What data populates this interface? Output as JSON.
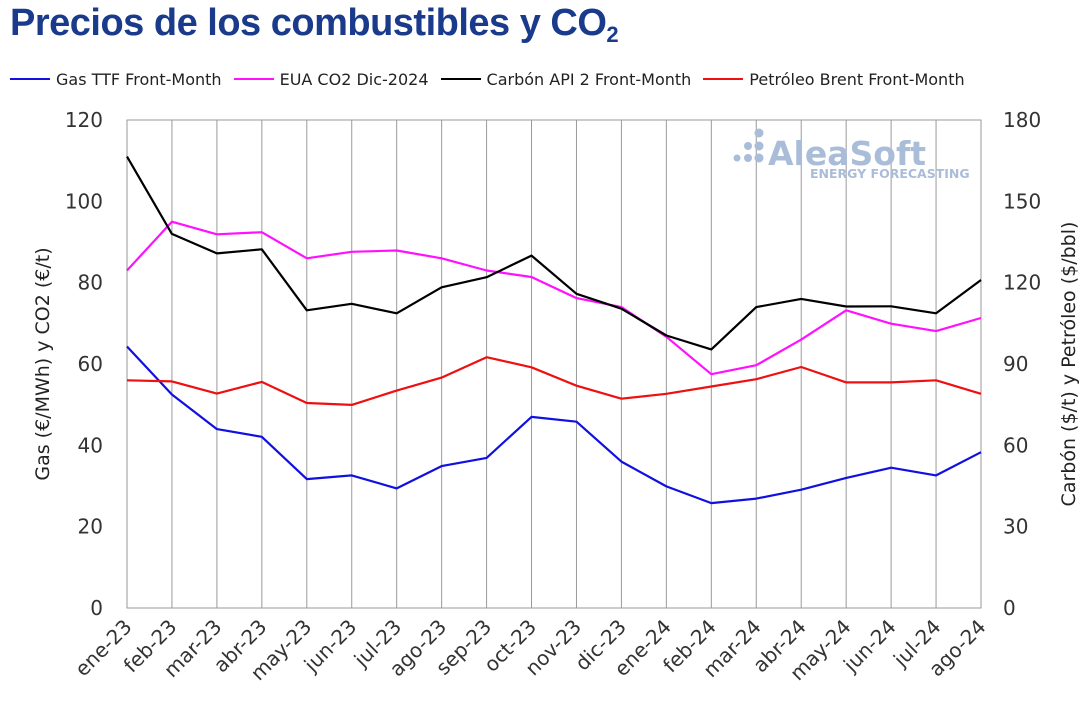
{
  "title": "Precios de los combustibles y CO",
  "title_subscript": "2",
  "watermark": {
    "brand": "AleaSoft",
    "tagline": "ENERGY FORECASTING"
  },
  "chart_data": {
    "type": "line",
    "x": [
      "ene-23",
      "feb-23",
      "mar-23",
      "abr-23",
      "may-23",
      "jun-23",
      "jul-23",
      "ago-23",
      "sep-23",
      "oct-23",
      "nov-23",
      "dic-23",
      "ene-24",
      "feb-24",
      "mar-24",
      "abr-24",
      "may-24",
      "jun-24",
      "jul-24",
      "ago-24"
    ],
    "left_axis": {
      "label": "Gas (€/MWh) y CO2 (€/t)",
      "ylim": [
        0,
        120
      ],
      "ticks": [
        0,
        20,
        40,
        60,
        80,
        100,
        120
      ]
    },
    "right_axis": {
      "label": "Carbón ($/t) y Petróleo ($/bbl)",
      "ylim": [
        0,
        180
      ],
      "ticks": [
        0,
        30,
        60,
        90,
        120,
        150,
        180
      ]
    },
    "grid": {
      "vertical": true,
      "horizontal": false
    },
    "legend_position": "top",
    "series": [
      {
        "name": "Gas TTF Front-Month",
        "axis": "left",
        "color": "#1010e0",
        "values": [
          64.3,
          52.5,
          44.0,
          42.1,
          31.7,
          32.6,
          29.4,
          34.9,
          36.9,
          47.0,
          45.8,
          36.0,
          29.9,
          25.8,
          26.9,
          29.1,
          32.0,
          34.5,
          32.6,
          38.3
        ]
      },
      {
        "name": "EUA CO2 Dic-2024",
        "axis": "left",
        "color": "#ff10ff",
        "values": [
          83.0,
          95.0,
          91.9,
          92.4,
          86.0,
          87.6,
          87.9,
          86.0,
          83.0,
          81.4,
          76.2,
          74.0,
          66.7,
          57.5,
          59.7,
          66.0,
          73.2,
          69.9,
          68.1,
          71.3
        ]
      },
      {
        "name": "Carbón API 2 Front-Month",
        "axis": "right",
        "color": "#000000",
        "values": [
          166.5,
          138.0,
          130.8,
          132.3,
          109.8,
          112.2,
          108.7,
          118.3,
          122.0,
          130.0,
          115.9,
          110.4,
          100.5,
          95.4,
          111.0,
          114.0,
          111.2,
          111.3,
          108.7,
          121.0
        ]
      },
      {
        "name": "Petróleo Brent Front-Month",
        "axis": "right",
        "color": "#ee1010",
        "values": [
          84.0,
          83.6,
          79.1,
          83.4,
          75.6,
          74.9,
          80.2,
          85.0,
          92.5,
          88.8,
          82.0,
          77.2,
          79.0,
          81.7,
          84.4,
          88.9,
          83.2,
          83.2,
          84.0,
          79.0
        ]
      }
    ]
  }
}
